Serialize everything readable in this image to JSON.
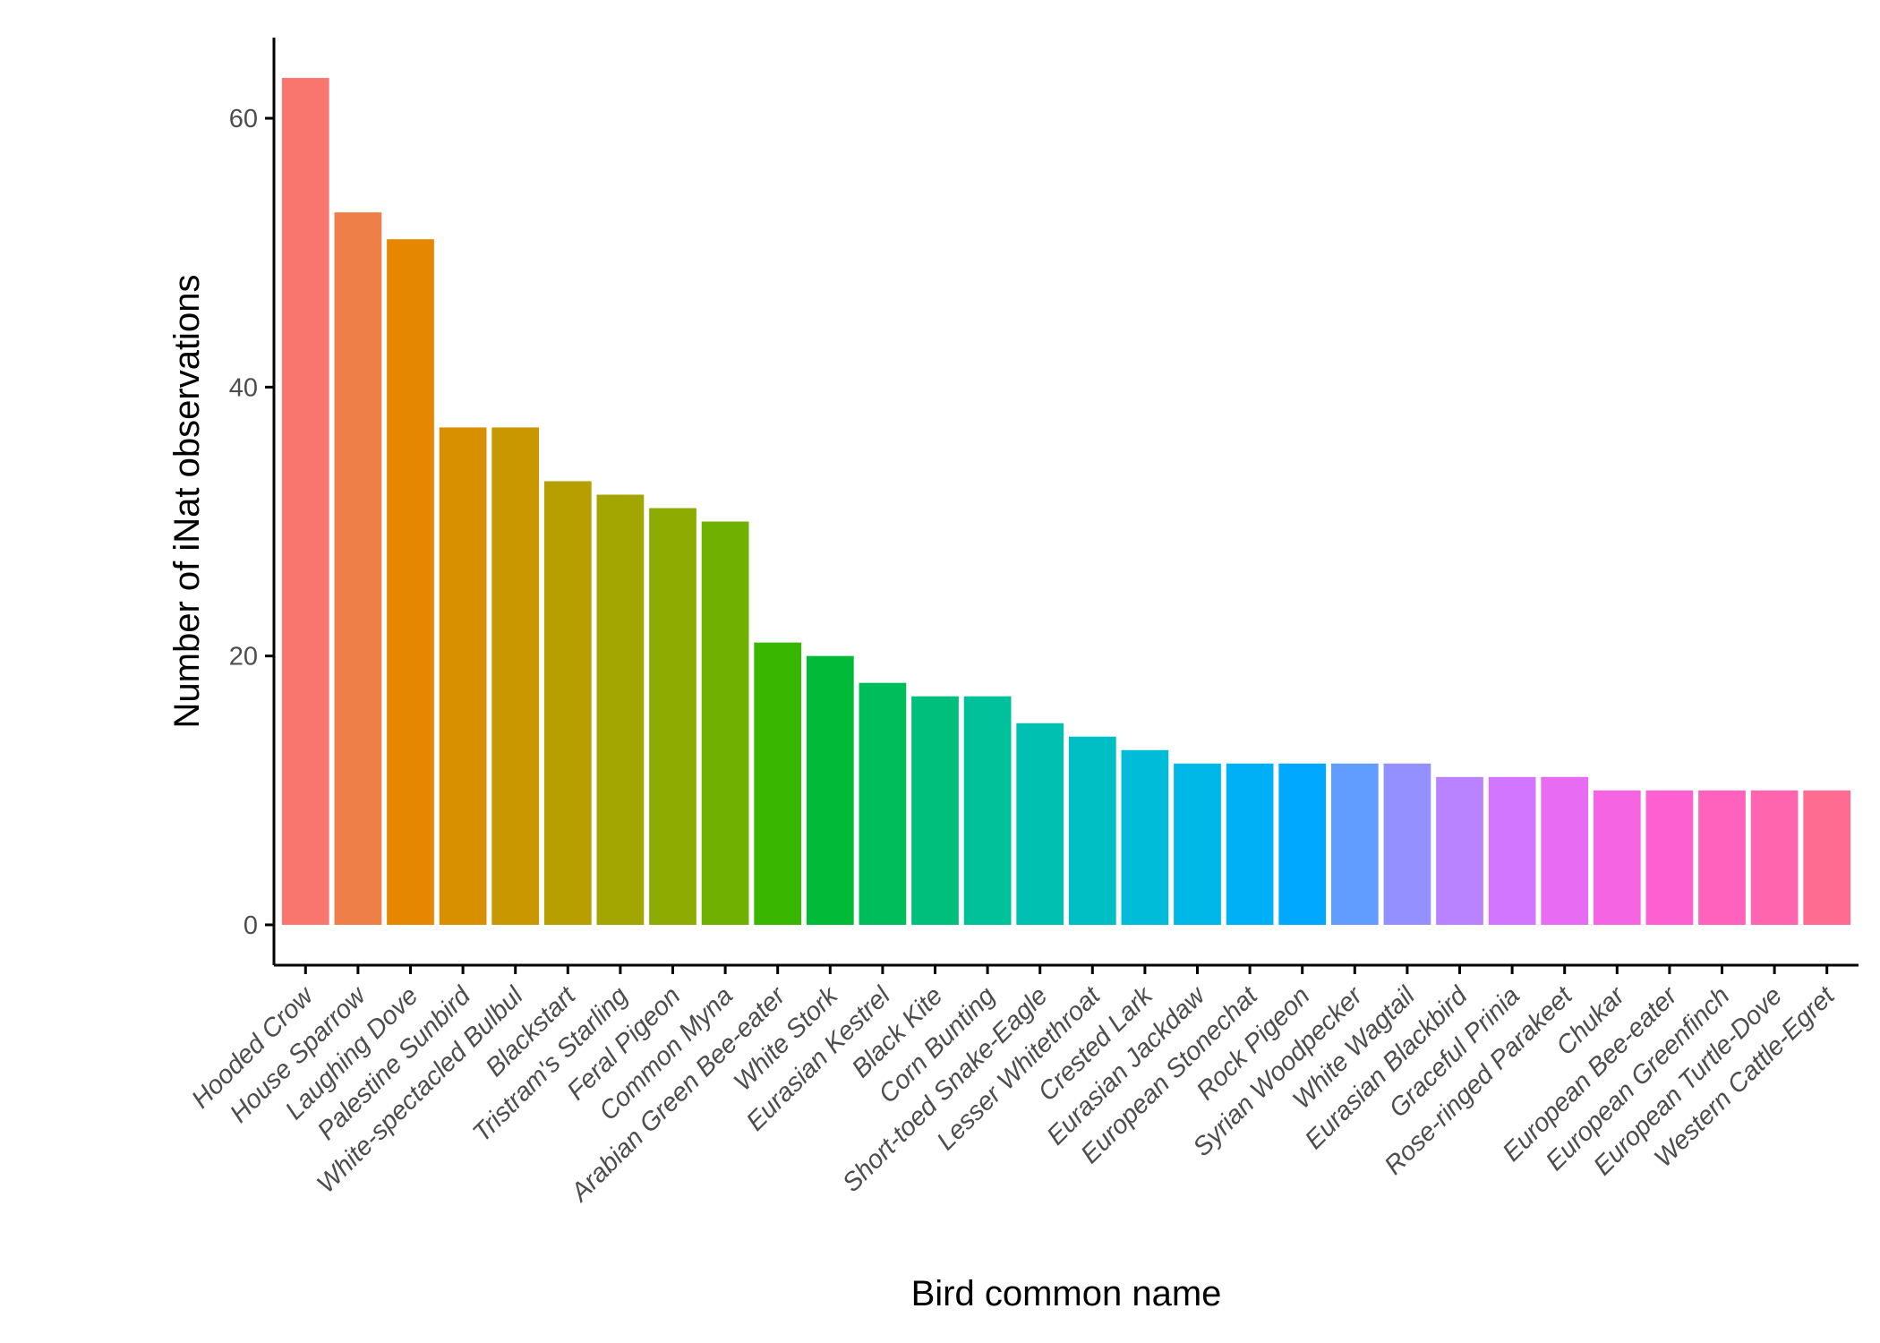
{
  "chart_data": {
    "type": "bar",
    "title": "",
    "xlabel": "Bird common name",
    "ylabel": "Number of iNat observations",
    "ylim": [
      -3,
      66
    ],
    "yticks": [
      0,
      20,
      40,
      60
    ],
    "grid": false,
    "legend": "none",
    "categories": [
      "Hooded Crow",
      "House Sparrow",
      "Laughing Dove",
      "Palestine Sunbird",
      "White-spectacled Bulbul",
      "Blackstart",
      "Tristram's Starling",
      "Feral Pigeon",
      "Common Myna",
      "Arabian Green Bee-eater",
      "White Stork",
      "Eurasian Kestrel",
      "Black Kite",
      "Corn Bunting",
      "Short-toed Snake-Eagle",
      "Lesser Whitethroat",
      "Crested Lark",
      "Eurasian Jackdaw",
      "European Stonechat",
      "Rock Pigeon",
      "Syrian Woodpecker",
      "White Wagtail",
      "Eurasian Blackbird",
      "Graceful Prinia",
      "Rose-ringed Parakeet",
      "Chukar",
      "European Bee-eater",
      "European Greenfinch",
      "European Turtle-Dove",
      "Western Cattle-Egret"
    ],
    "values": [
      63,
      53,
      51,
      37,
      37,
      33,
      32,
      31,
      30,
      21,
      20,
      18,
      17,
      17,
      15,
      14,
      13,
      12,
      12,
      12,
      12,
      12,
      11,
      11,
      11,
      10,
      10,
      10,
      10,
      10
    ],
    "colors": [
      "#F8766D",
      "#EF7F49",
      "#E58700",
      "#D89000",
      "#C99800",
      "#B79F00",
      "#A3A500",
      "#8DAB00",
      "#70B000",
      "#39B600",
      "#00BA38",
      "#00BD5C",
      "#00BF7D",
      "#00C19A",
      "#00C0B2",
      "#00BFC4",
      "#00BCD8",
      "#00B8E7",
      "#00B0F6",
      "#00A9FF",
      "#619CFF",
      "#9590FF",
      "#B983FF",
      "#D376FF",
      "#E76BF3",
      "#F564E3",
      "#FD61D1",
      "#FF62BC",
      "#FF65AE",
      "#FF6C91"
    ]
  }
}
